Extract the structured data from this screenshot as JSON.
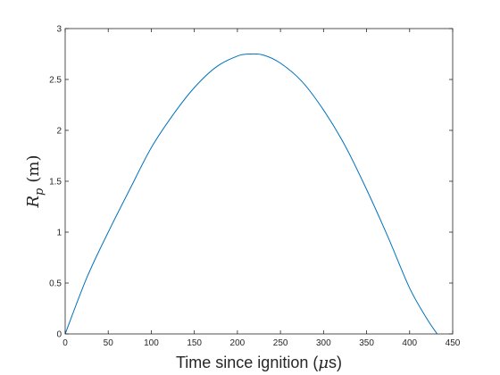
{
  "chart_data": {
    "type": "line",
    "title": "",
    "xlabel": {
      "prefix": "Time since ignition (",
      "mu": "μ",
      "suffix": "s)"
    },
    "ylabel": {
      "symbol": "R",
      "subscript": "p",
      "unit": "(m)"
    },
    "xlim": [
      0,
      450
    ],
    "ylim": [
      0,
      3
    ],
    "xticks": [
      0,
      50,
      100,
      150,
      200,
      250,
      300,
      350,
      400,
      450
    ],
    "yticks": [
      0,
      0.5,
      1,
      1.5,
      2,
      2.5,
      3
    ],
    "xtick_labels": [
      "0",
      "50",
      "100",
      "150",
      "200",
      "250",
      "300",
      "350",
      "400",
      "450"
    ],
    "ytick_labels": [
      "0",
      "0.5",
      "1",
      "1.5",
      "2",
      "2.5",
      "3"
    ],
    "grid": false,
    "box": true,
    "series": [
      {
        "color": "#0072BD",
        "x": [
          0,
          25,
          50,
          75,
          100,
          125,
          150,
          175,
          200,
          215,
          230,
          250,
          275,
          300,
          325,
          350,
          375,
          400,
          420,
          432
        ],
        "y": [
          0,
          0.55,
          1.0,
          1.42,
          1.83,
          2.15,
          2.42,
          2.62,
          2.73,
          2.75,
          2.74,
          2.66,
          2.48,
          2.2,
          1.85,
          1.42,
          0.95,
          0.45,
          0.15,
          0
        ]
      }
    ]
  }
}
